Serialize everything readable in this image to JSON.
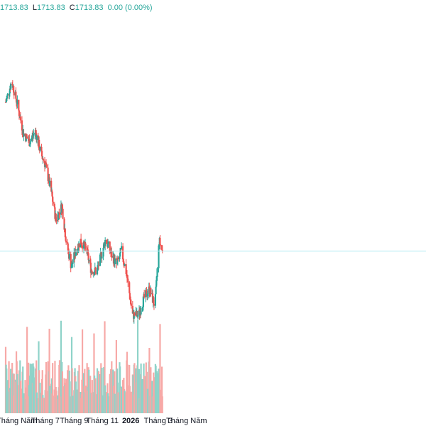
{
  "legend": {
    "high_value": "1713.83",
    "low_label": "L",
    "low_value": "1713.83",
    "close_label": "C",
    "close_value": "1713.83",
    "change_value": "0.00",
    "change_pct": "(0.00%)"
  },
  "colors": {
    "up": "#26a69a",
    "down": "#ef5350",
    "up_volume": "#8fd3c9",
    "down_volume": "#f7a9a7",
    "price_line": "#b2ebf2",
    "axis_text": "#131722"
  },
  "chart_data": {
    "type": "candlestick",
    "x_tick_labels": [
      "Tháng Năm",
      "Tháng 7",
      "Tháng 9",
      "Tháng 11",
      "2026",
      "Tháng 3",
      "Tháng Năm"
    ],
    "x_tick_dates": [
      "2025-05",
      "2025-07",
      "2025-09",
      "2025-11",
      "2026-01",
      "2026-03",
      "2026-05"
    ],
    "current_price": 1713.83,
    "price_line_level": 1713.83,
    "grid": false,
    "approx_close_path": [
      {
        "date": "2025-04-07",
        "close": 1800
      },
      {
        "date": "2025-04-20",
        "close": 1812
      },
      {
        "date": "2025-05-01",
        "close": 1800
      },
      {
        "date": "2025-05-15",
        "close": 1782
      },
      {
        "date": "2025-05-28",
        "close": 1777
      },
      {
        "date": "2025-06-10",
        "close": 1783
      },
      {
        "date": "2025-06-22",
        "close": 1770
      },
      {
        "date": "2025-07-01",
        "close": 1764
      },
      {
        "date": "2025-07-14",
        "close": 1748
      },
      {
        "date": "2025-07-24",
        "close": 1732
      },
      {
        "date": "2025-08-06",
        "close": 1740
      },
      {
        "date": "2025-08-15",
        "close": 1720
      },
      {
        "date": "2025-08-26",
        "close": 1705
      },
      {
        "date": "2025-09-05",
        "close": 1714
      },
      {
        "date": "2025-09-15",
        "close": 1720
      },
      {
        "date": "2025-09-28",
        "close": 1714
      },
      {
        "date": "2025-10-08",
        "close": 1703
      },
      {
        "date": "2025-10-20",
        "close": 1702
      },
      {
        "date": "2025-10-30",
        "close": 1712
      },
      {
        "date": "2025-11-08",
        "close": 1721
      },
      {
        "date": "2025-11-20",
        "close": 1712
      },
      {
        "date": "2025-12-02",
        "close": 1706
      },
      {
        "date": "2025-12-12",
        "close": 1714
      },
      {
        "date": "2025-12-22",
        "close": 1702
      },
      {
        "date": "2026-01-05",
        "close": 1677
      },
      {
        "date": "2026-01-18",
        "close": 1677
      },
      {
        "date": "2026-01-30",
        "close": 1687
      },
      {
        "date": "2026-02-10",
        "close": 1692
      },
      {
        "date": "2026-02-22",
        "close": 1682
      },
      {
        "date": "2026-03-03",
        "close": 1720
      },
      {
        "date": "2026-03-10",
        "close": 1713.83
      }
    ]
  }
}
